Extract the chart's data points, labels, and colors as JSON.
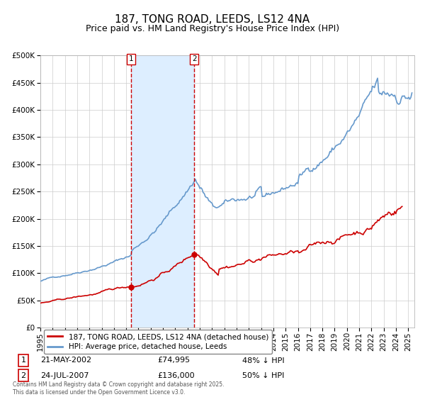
{
  "title": "187, TONG ROAD, LEEDS, LS12 4NA",
  "subtitle": "Price paid vs. HM Land Registry's House Price Index (HPI)",
  "footnote": "Contains HM Land Registry data © Crown copyright and database right 2025.\nThis data is licensed under the Open Government Licence v3.0.",
  "legend": [
    "187, TONG ROAD, LEEDS, LS12 4NA (detached house)",
    "HPI: Average price, detached house, Leeds"
  ],
  "legend_colors": [
    "#cc0000",
    "#6699cc"
  ],
  "transactions": [
    {
      "label": "1",
      "date": "21-MAY-2002",
      "price": "£74,995",
      "note": "48% ↓ HPI",
      "x_year": 2002.38
    },
    {
      "label": "2",
      "date": "24-JUL-2007",
      "price": "£136,000",
      "note": "50% ↓ HPI",
      "x_year": 2007.55
    }
  ],
  "shading": {
    "x_start": 2002.38,
    "x_end": 2007.55,
    "color": "#ddeeff"
  },
  "ylim": [
    0,
    500000
  ],
  "yticks": [
    0,
    50000,
    100000,
    150000,
    200000,
    250000,
    300000,
    350000,
    400000,
    450000,
    500000
  ],
  "xlim": [
    1995.0,
    2025.5
  ],
  "plot_bg_color": "#ffffff",
  "grid_color": "#cccccc",
  "hpi_color": "#6699cc",
  "price_color": "#cc0000",
  "title_fontsize": 11,
  "subtitle_fontsize": 9,
  "tick_fontsize": 7.5
}
